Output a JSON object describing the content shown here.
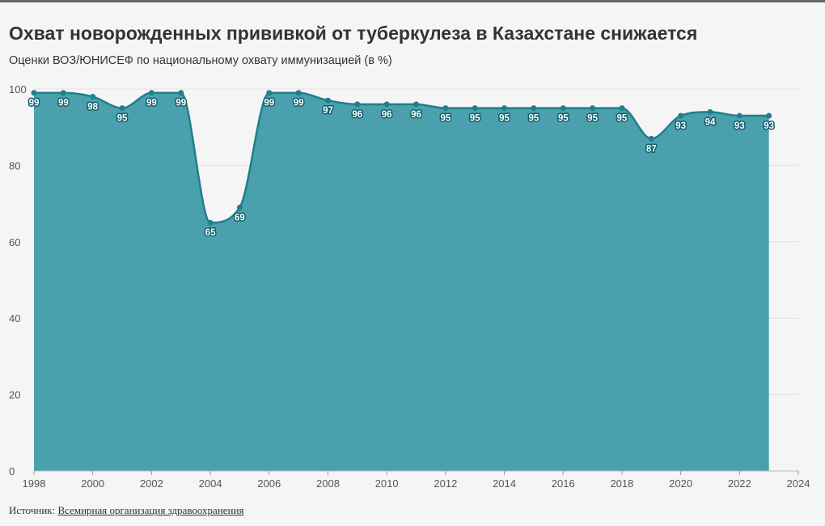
{
  "title": "Охват новорожденных прививкой от туберкулеза в Казахстане снижается",
  "subtitle": "Оценки ВОЗ/ЮНИСЕФ по национальному охвату иммунизацией (в %)",
  "source": {
    "label": "Источник:",
    "link_text": "Всемирная организация здравоохранения"
  },
  "colors": {
    "area_fill": "#4aa0ad",
    "line": "#1f7f8c",
    "label_text": "#ffffff",
    "label_stroke": "#0f5e68",
    "grid": "#e2e2e2",
    "background": "#f5f5f5"
  },
  "chart_data": {
    "type": "area",
    "title": "Охват новорожденных прививкой от туберкулеза в Казахстане снижается",
    "subtitle": "Оценки ВОЗ/ЮНИСЕФ по национальному охвату иммунизацией (в %)",
    "xlabel": "",
    "ylabel": "",
    "xlim": [
      1998,
      2024
    ],
    "ylim": [
      0,
      100
    ],
    "x_ticks": [
      1998,
      2000,
      2002,
      2004,
      2006,
      2008,
      2010,
      2012,
      2014,
      2016,
      2018,
      2020,
      2022,
      2024
    ],
    "y_ticks": [
      0,
      20,
      40,
      60,
      80,
      100
    ],
    "grid": true,
    "x": [
      1998,
      1999,
      2000,
      2001,
      2002,
      2003,
      2004,
      2005,
      2006,
      2007,
      2008,
      2009,
      2010,
      2011,
      2012,
      2013,
      2014,
      2015,
      2016,
      2017,
      2018,
      2019,
      2020,
      2021,
      2022,
      2023
    ],
    "values": [
      99,
      99,
      98,
      95,
      99,
      99,
      65,
      69,
      99,
      99,
      97,
      96,
      96,
      96,
      95,
      95,
      95,
      95,
      95,
      95,
      95,
      87,
      93,
      94,
      93,
      93
    ]
  }
}
